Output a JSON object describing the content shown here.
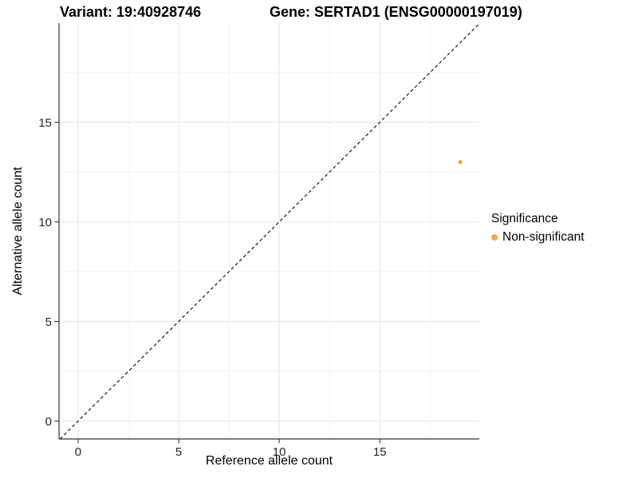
{
  "titles": {
    "variant": "Variant: 19:40928746",
    "gene": "Gene: SERTAD1 (ENSG00000197019)"
  },
  "legend": {
    "title": "Significance",
    "entries": [
      {
        "label": "Non-significant",
        "color": "#F7A540"
      }
    ]
  },
  "colors": {
    "point": "#F7A540",
    "grid_major": "#E6E6E6",
    "grid_minor": "#F2F2F2",
    "axis_line": "#333333",
    "reference_line": "#000000",
    "background": "#FFFFFF"
  },
  "chart_data": {
    "type": "scatter",
    "title": "Variant: 19:40928746 — Gene: SERTAD1 (ENSG00000197019)",
    "xlabel": "Reference allele count",
    "ylabel": "Alternative allele count",
    "xlim": [
      -0.95,
      19.95
    ],
    "ylim": [
      -0.9,
      19.98
    ],
    "x_ticks": [
      0,
      5,
      10,
      15
    ],
    "y_ticks": [
      0,
      5,
      10,
      15
    ],
    "x_tick_labels": [
      "0",
      "5",
      "10",
      "15"
    ],
    "y_tick_labels": [
      "0",
      "5",
      "10",
      "15"
    ],
    "x_minor_ticks": [
      2.5,
      7.5,
      12.5,
      17.5
    ],
    "y_minor_ticks": [
      2.5,
      7.5,
      12.5,
      17.5
    ],
    "grid": true,
    "legend_position": "right",
    "reference_line": {
      "equation": "y = x",
      "style": "dashed",
      "color": "#000000"
    },
    "series": [
      {
        "name": "Non-significant",
        "color": "#F7A540",
        "points": [
          {
            "x": 19,
            "y": 13
          }
        ]
      }
    ]
  }
}
